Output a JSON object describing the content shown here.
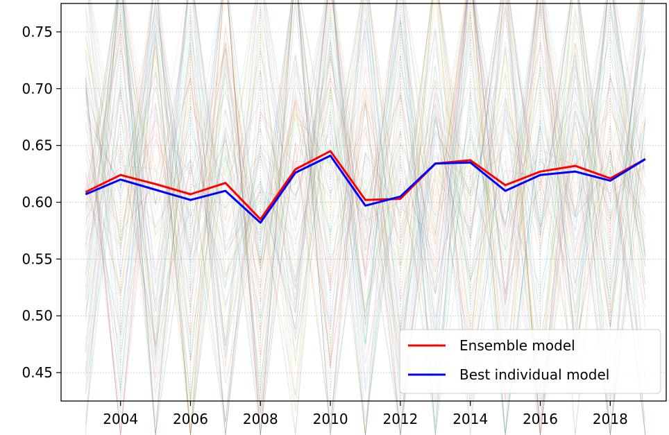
{
  "chart_data": {
    "type": "line",
    "title": "",
    "xlabel": "",
    "ylabel": "",
    "x": [
      2003,
      2004,
      2005,
      2006,
      2007,
      2008,
      2009,
      2010,
      2011,
      2012,
      2013,
      2014,
      2015,
      2016,
      2017,
      2018,
      2019
    ],
    "xlim": [
      2002.3,
      2019.6
    ],
    "ylim": [
      0.425,
      0.775
    ],
    "xticks": [
      2004,
      2006,
      2008,
      2010,
      2012,
      2014,
      2016,
      2018
    ],
    "yticks": [
      0.45,
      0.5,
      0.55,
      0.6,
      0.65,
      0.7,
      0.75
    ],
    "xtick_labels": [
      "2004",
      "2006",
      "2008",
      "2010",
      "2012",
      "2014",
      "2016",
      "2018"
    ],
    "ytick_labels": [
      "0.45",
      "0.50",
      "0.55",
      "0.60",
      "0.65",
      "0.70",
      "0.75"
    ],
    "grid": true,
    "legend_position": "bottom-right",
    "series": [
      {
        "name": "Ensemble model",
        "color": "#ff0000",
        "values": [
          0.609,
          0.624,
          0.616,
          0.607,
          0.617,
          0.585,
          0.629,
          0.645,
          0.602,
          0.603,
          0.634,
          0.637,
          0.615,
          0.627,
          0.632,
          0.621,
          0.638
        ]
      },
      {
        "name": "Best individual model",
        "color": "#0000ff",
        "values": [
          0.607,
          0.62,
          0.611,
          0.602,
          0.61,
          0.582,
          0.626,
          0.641,
          0.597,
          0.605,
          0.634,
          0.635,
          0.61,
          0.624,
          0.627,
          0.619,
          0.638
        ]
      }
    ],
    "background_models": {
      "count": 90,
      "line_opacity": 0.18,
      "colors": [
        "#1f77b4",
        "#ff7f0e",
        "#2ca02c",
        "#d62728",
        "#9467bd",
        "#8c564b",
        "#7f7f7f",
        "#bcbd22",
        "#17becf"
      ]
    }
  }
}
